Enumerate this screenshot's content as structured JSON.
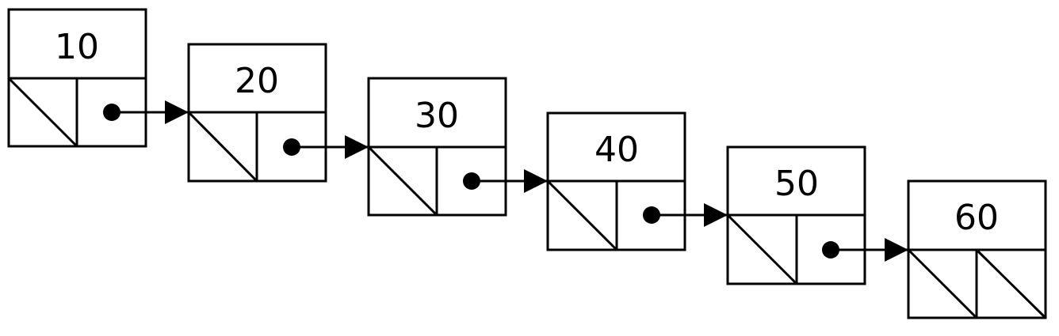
{
  "diagram": {
    "type": "linked-list",
    "nodes": [
      {
        "value": "10",
        "left": "null",
        "right": "pointer"
      },
      {
        "value": "20",
        "left": "null",
        "right": "pointer"
      },
      {
        "value": "30",
        "left": "null",
        "right": "pointer"
      },
      {
        "value": "40",
        "left": "null",
        "right": "pointer"
      },
      {
        "value": "50",
        "left": "null",
        "right": "pointer"
      },
      {
        "value": "60",
        "left": "null",
        "right": "null"
      }
    ],
    "links": [
      {
        "from": "10",
        "to": "20"
      },
      {
        "from": "20",
        "to": "30"
      },
      {
        "from": "30",
        "to": "40"
      },
      {
        "from": "40",
        "to": "50"
      },
      {
        "from": "50",
        "to": "60"
      }
    ],
    "colors": {
      "stroke": "#000000",
      "background": "#ffffff"
    }
  }
}
